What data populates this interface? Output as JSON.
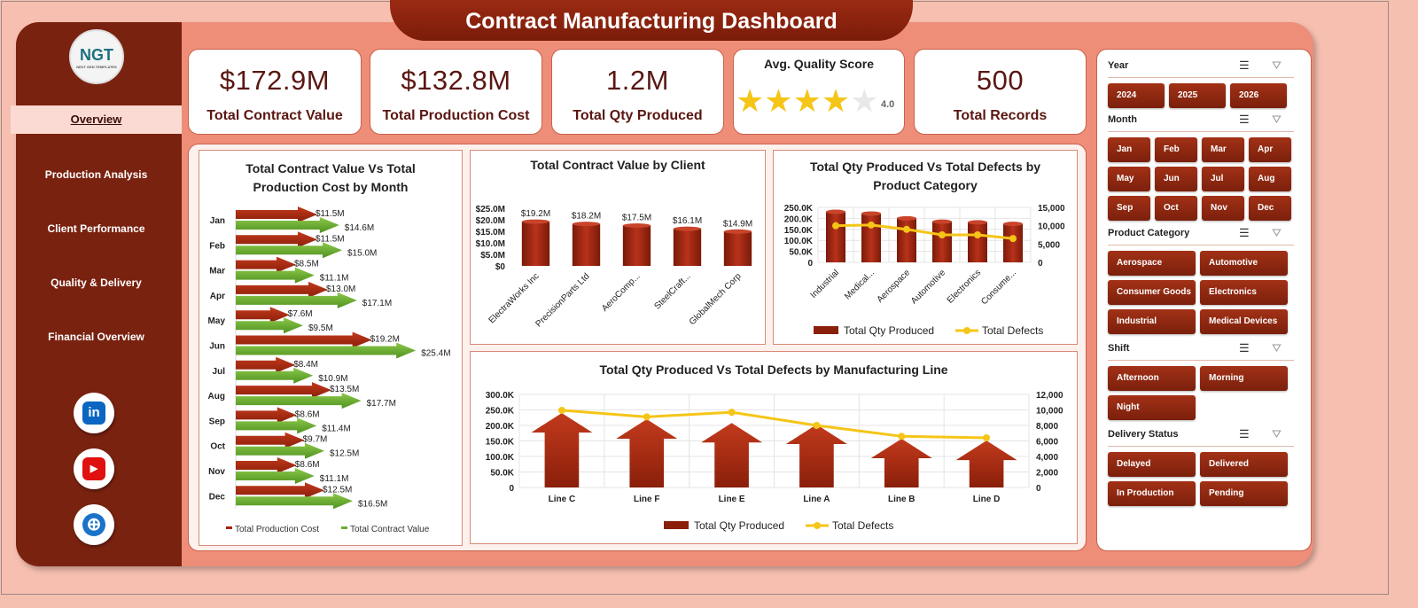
{
  "title": "Contract Manufacturing Dashboard",
  "logo": {
    "text": "NGT",
    "tagline": "NEXT GEN TEMPLATES"
  },
  "sidebar": {
    "items": [
      {
        "label": "Overview",
        "active": true
      },
      {
        "label": "Production Analysis"
      },
      {
        "label": "Client Performance"
      },
      {
        "label": "Quality & Delivery"
      },
      {
        "label": "Financial Overview"
      }
    ],
    "social": [
      {
        "icon": "linkedin-icon",
        "glyph": "in",
        "color": "#0a66c2"
      },
      {
        "icon": "youtube-icon",
        "glyph": "▶",
        "color": "#e01010"
      },
      {
        "icon": "globe-icon",
        "glyph": "⊕",
        "color": "#1a73c8"
      }
    ]
  },
  "kpis": [
    {
      "value": "$172.9M",
      "label": "Total Contract Value"
    },
    {
      "value": "$132.8M",
      "label": "Total Production Cost"
    },
    {
      "value": "1.2M",
      "label": "Total Qty Produced"
    },
    {
      "label": "Avg. Quality Score",
      "rating": 4.0,
      "rating_text": "4.0",
      "max": 5
    },
    {
      "value": "500",
      "label": "Total Records"
    }
  ],
  "filters": [
    {
      "title": "Year",
      "options": [
        "2024",
        "2025",
        "2026"
      ]
    },
    {
      "title": "Month",
      "options": [
        "Jan",
        "Feb",
        "Mar",
        "Apr",
        "May",
        "Jun",
        "Jul",
        "Aug",
        "Sep",
        "Oct",
        "Nov",
        "Dec"
      ]
    },
    {
      "title": "Product Category",
      "options": [
        "Aerospace",
        "Automotive",
        "Consumer Goods",
        "Electronics",
        "Industrial",
        "Medical Devices"
      ]
    },
    {
      "title": "Shift",
      "options": [
        "Afternoon",
        "Morning",
        "Night"
      ]
    },
    {
      "title": "Delivery Status",
      "options": [
        "Delayed",
        "Delivered",
        "In Production",
        "Pending"
      ]
    }
  ],
  "colors": {
    "dark_red": "#7a2210",
    "salmon": "#ef8e78",
    "green": "#6aae2e",
    "yellow": "#f5c518"
  },
  "chart_data": [
    {
      "type": "bar",
      "orientation": "horizontal",
      "title": "Total Contract Value Vs Total Production Cost by Month",
      "categories": [
        "Jan",
        "Feb",
        "Mar",
        "Apr",
        "May",
        "Jun",
        "Jul",
        "Aug",
        "Sep",
        "Oct",
        "Nov",
        "Dec"
      ],
      "series": [
        {
          "name": "Total Production Cost",
          "values": [
            11.5,
            11.5,
            8.5,
            13.0,
            7.6,
            19.2,
            8.4,
            13.5,
            8.6,
            9.7,
            8.6,
            12.5
          ],
          "labels": [
            "$11.5M",
            "$11.5M",
            "$8.5M",
            "$13.0M",
            "$7.6M",
            "$19.2M",
            "$8.4M",
            "$13.5M",
            "$8.6M",
            "$9.7M",
            "$8.6M",
            "$12.5M"
          ],
          "color": "#a8220c"
        },
        {
          "name": "Total Contract Value",
          "values": [
            14.6,
            15.0,
            11.1,
            17.1,
            9.5,
            25.4,
            10.9,
            17.7,
            11.4,
            12.5,
            11.1,
            16.5
          ],
          "labels": [
            "$14.6M",
            "$15.0M",
            "$11.1M",
            "$17.1M",
            "$9.5M",
            "$25.4M",
            "$10.9M",
            "$17.7M",
            "$11.4M",
            "$12.5M",
            "$11.1M",
            "$16.5M"
          ],
          "color": "#6aae2e"
        }
      ],
      "legend": "bottom"
    },
    {
      "type": "bar",
      "title": "Total Contract Value by Client",
      "categories": [
        "ElectraWorks Inc",
        "PrecisionParts Ltd",
        "AeroComp...",
        "SteelCraft...",
        "GlobalMech Corp"
      ],
      "values": [
        19.2,
        18.2,
        17.5,
        16.1,
        14.9
      ],
      "labels": [
        "$19.2M",
        "$18.2M",
        "$17.5M",
        "$16.1M",
        "$14.9M"
      ],
      "ylim": [
        0,
        25
      ],
      "yticks": [
        "$0",
        "$5.0M",
        "$10.0M",
        "$15.0M",
        "$20.0M",
        "$25.0M"
      ],
      "grid": false
    },
    {
      "type": "bar+line",
      "title": "Total Qty Produced Vs Total Defects by Product Category",
      "categories": [
        "Industrial",
        "Medical...",
        "Aerospace",
        "Automotive",
        "Electronics",
        "Consume..."
      ],
      "series": [
        {
          "name": "Total Qty Produced",
          "values": [
            230000,
            222000,
            200000,
            185000,
            182000,
            175000
          ],
          "axis": "left"
        },
        {
          "name": "Total Defects",
          "values": [
            10000,
            10200,
            9000,
            7500,
            7500,
            6500
          ],
          "axis": "right"
        }
      ],
      "ylim": [
        0,
        250000
      ],
      "yticks": [
        "0",
        "50.0K",
        "100.0K",
        "150.0K",
        "200.0K",
        "250.0K"
      ],
      "y2lim": [
        0,
        15000
      ],
      "y2ticks": [
        "0",
        "5,000",
        "10,000",
        "15,000"
      ],
      "grid": true,
      "legend": "bottom"
    },
    {
      "type": "bar+line",
      "title": "Total Qty Produced Vs Total Defects by Manufacturing  Line",
      "categories": [
        "Line C",
        "Line F",
        "Line E",
        "Line A",
        "Line B",
        "Line D"
      ],
      "series": [
        {
          "name": "Total Qty Produced",
          "values": [
            240000,
            220000,
            208000,
            203000,
            157000,
            151000
          ],
          "axis": "left"
        },
        {
          "name": "Total Defects",
          "values": [
            9950,
            9100,
            9700,
            8000,
            6600,
            6400
          ],
          "axis": "right"
        }
      ],
      "ylim": [
        0,
        300000
      ],
      "yticks": [
        "0",
        "50.0K",
        "100.0K",
        "150.0K",
        "200.0K",
        "250.0K",
        "300.0K"
      ],
      "y2lim": [
        0,
        12000
      ],
      "y2ticks": [
        "0",
        "2,000",
        "4,000",
        "6,000",
        "8,000",
        "10,000",
        "12,000"
      ],
      "grid": true,
      "legend": "bottom"
    }
  ]
}
